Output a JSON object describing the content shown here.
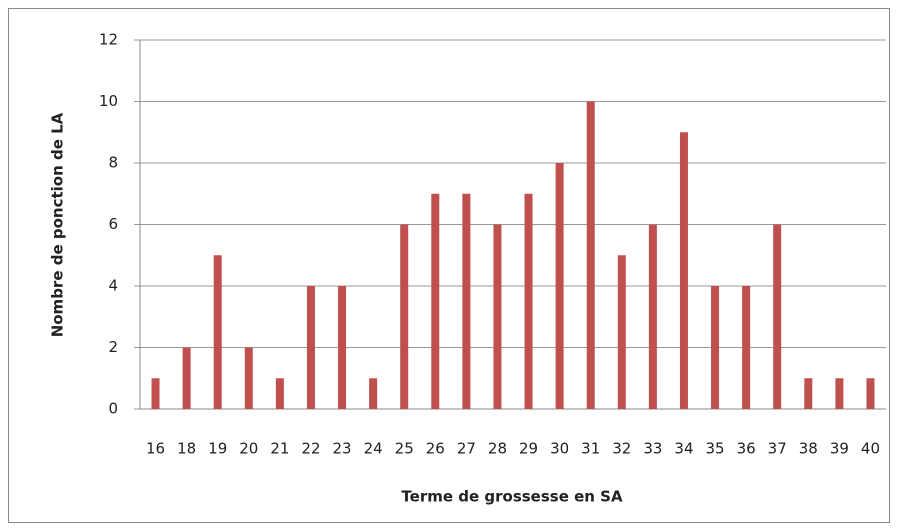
{
  "chart_data": {
    "type": "bar",
    "x_label": "Terme de grossesse en SA",
    "y_label": "Nombre de ponction de LA",
    "categories": [
      "16",
      "18",
      "19",
      "20",
      "21",
      "22",
      "23",
      "24",
      "25",
      "26",
      "27",
      "28",
      "29",
      "30",
      "31",
      "32",
      "33",
      "34",
      "35",
      "36",
      "37",
      "38",
      "39",
      "40"
    ],
    "values": [
      1,
      2,
      5,
      2,
      1,
      4,
      4,
      1,
      6,
      7,
      7,
      6,
      7,
      8,
      10,
      5,
      6,
      9,
      4,
      4,
      6,
      1,
      1,
      1
    ],
    "color": "#c0504d",
    "ylim": [
      0,
      12
    ],
    "yticks": [
      0,
      2,
      4,
      6,
      8,
      10,
      12
    ],
    "grid": true
  }
}
